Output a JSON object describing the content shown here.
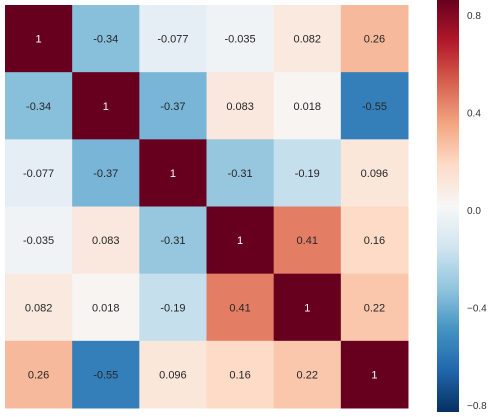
{
  "chart_data": {
    "type": "heatmap",
    "title": "",
    "xlabel": "",
    "ylabel": "",
    "row_labels": [],
    "col_labels": [],
    "values": [
      [
        1,
        -0.34,
        -0.077,
        -0.035,
        0.082,
        0.26
      ],
      [
        -0.34,
        1,
        -0.37,
        0.083,
        0.018,
        -0.55
      ],
      [
        -0.077,
        -0.37,
        1,
        -0.31,
        -0.19,
        0.096
      ],
      [
        -0.035,
        0.083,
        -0.31,
        1,
        0.41,
        0.16
      ],
      [
        0.082,
        0.018,
        -0.19,
        0.41,
        1,
        0.22
      ],
      [
        0.26,
        -0.55,
        0.096,
        0.16,
        0.22,
        1
      ]
    ],
    "cell_labels": [
      [
        "1",
        "-0.34",
        "-0.077",
        "-0.035",
        "0.082",
        "0.26"
      ],
      [
        "-0.34",
        "1",
        "-0.37",
        "0.083",
        "0.018",
        "-0.55"
      ],
      [
        "-0.077",
        "-0.37",
        "1",
        "-0.31",
        "-0.19",
        "0.096"
      ],
      [
        "-0.035",
        "0.083",
        "-0.31",
        "1",
        "0.41",
        "0.16"
      ],
      [
        "0.082",
        "0.018",
        "-0.19",
        "0.41",
        "1",
        "0.22"
      ],
      [
        "0.26",
        "-0.55",
        "0.096",
        "0.16",
        "0.22",
        "1"
      ]
    ],
    "colormap": "RdBu_r",
    "vmin": -0.8,
    "vmax": 0.8,
    "colorbar": {
      "ticks": [
        0.8,
        0.4,
        0.0,
        -0.4,
        -0.8
      ],
      "tick_labels": [
        "0.8",
        "0.4",
        "0.0",
        "−0.4",
        "−0.8"
      ]
    },
    "grid": false,
    "legend": "colorbar-right"
  }
}
